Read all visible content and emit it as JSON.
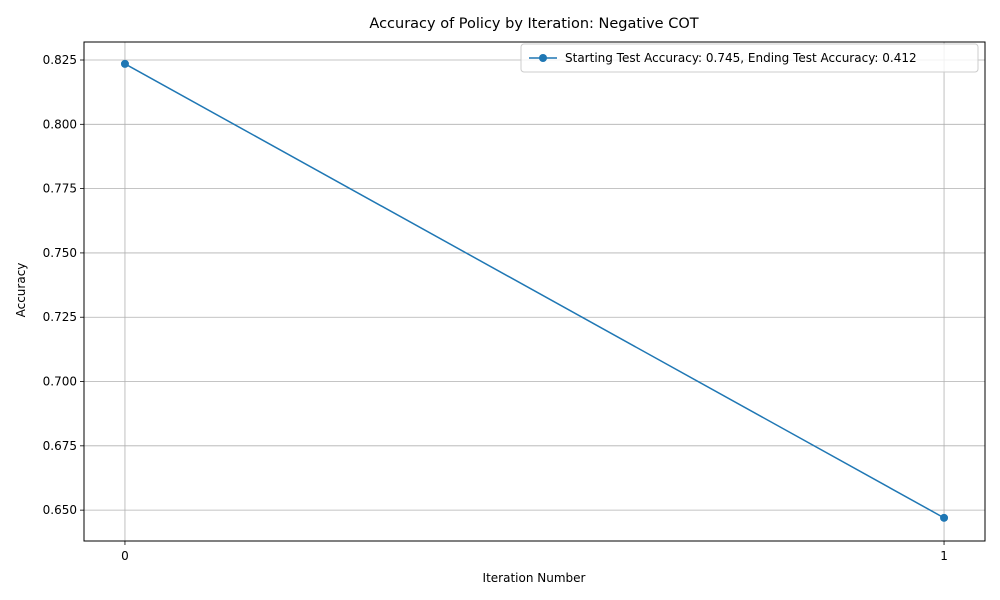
{
  "chart_data": {
    "type": "line",
    "title": "Accuracy of Policy by Iteration: Negative COT",
    "xlabel": "Iteration Number",
    "ylabel": "Accuracy",
    "x": [
      0,
      1
    ],
    "x_tick_labels": [
      "0",
      "1"
    ],
    "xlim": [
      -0.05,
      1.05
    ],
    "ylim": [
      0.638,
      0.832
    ],
    "y_ticks": [
      0.65,
      0.675,
      0.7,
      0.725,
      0.75,
      0.775,
      0.8,
      0.825
    ],
    "y_tick_labels": [
      "0.650",
      "0.675",
      "0.700",
      "0.725",
      "0.750",
      "0.775",
      "0.800",
      "0.825"
    ],
    "grid": true,
    "legend_position": "top-right",
    "series": [
      {
        "name": "Starting Test Accuracy: 0.745, Ending Test Accuracy: 0.412",
        "values": [
          0.8235,
          0.647
        ],
        "color": "#1f77b4",
        "marker": "circle"
      }
    ]
  }
}
